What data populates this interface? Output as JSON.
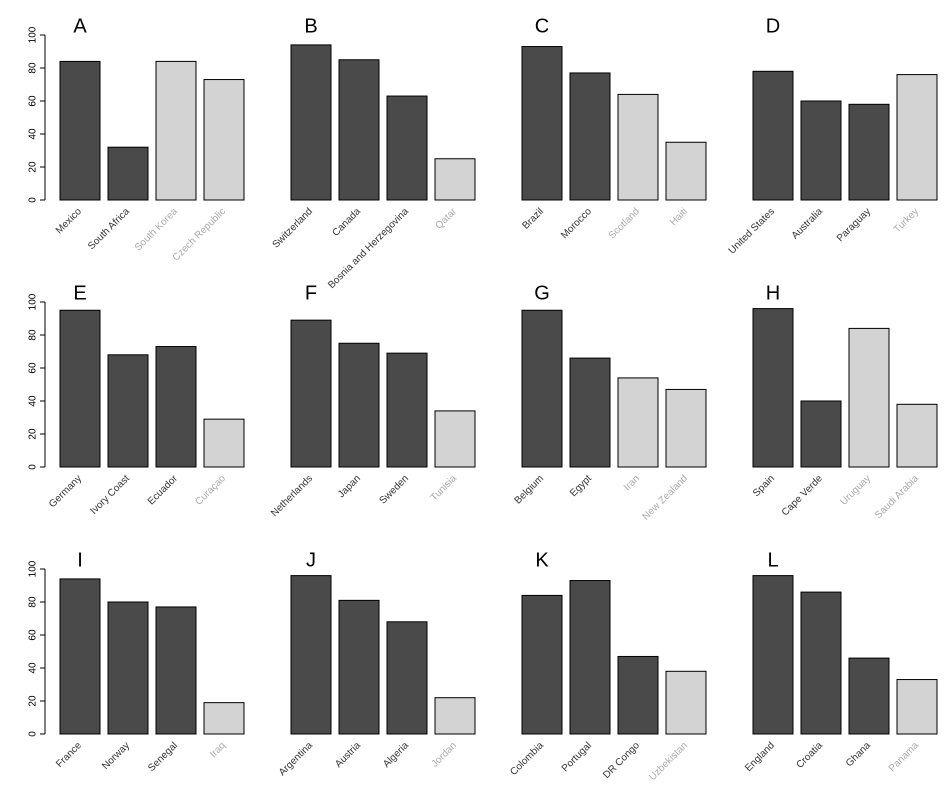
{
  "chart_data": [
    {
      "type": "bar",
      "title": "A",
      "categories": [
        "Mexico",
        "South Africa",
        "South Korea",
        "Czech Republic"
      ],
      "values": [
        84,
        32,
        84,
        73
      ],
      "colors": [
        "#4a4a4a",
        "#4a4a4a",
        "#d3d3d3",
        "#d3d3d3"
      ],
      "label_colors": [
        "#333333",
        "#333333",
        "#aaaaaa",
        "#aaaaaa"
      ],
      "ylim": [
        0,
        100
      ],
      "yticks": [
        0,
        20,
        40,
        60,
        80,
        100
      ]
    },
    {
      "type": "bar",
      "title": "B",
      "categories": [
        "Switzerland",
        "Canada",
        "Bosnia and Herzegovina",
        "Qatar"
      ],
      "values": [
        94,
        85,
        63,
        25
      ],
      "colors": [
        "#4a4a4a",
        "#4a4a4a",
        "#4a4a4a",
        "#d3d3d3"
      ],
      "label_colors": [
        "#333333",
        "#333333",
        "#333333",
        "#aaaaaa"
      ],
      "ylim": [
        0,
        100
      ]
    },
    {
      "type": "bar",
      "title": "C",
      "categories": [
        "Brazil",
        "Morocco",
        "Scotland",
        "Haiti"
      ],
      "values": [
        93,
        77,
        64,
        35
      ],
      "colors": [
        "#4a4a4a",
        "#4a4a4a",
        "#d3d3d3",
        "#d3d3d3"
      ],
      "label_colors": [
        "#333333",
        "#333333",
        "#aaaaaa",
        "#aaaaaa"
      ],
      "ylim": [
        0,
        100
      ]
    },
    {
      "type": "bar",
      "title": "D",
      "categories": [
        "United States",
        "Australia",
        "Paraguay",
        "Turkey"
      ],
      "values": [
        78,
        60,
        58,
        76
      ],
      "colors": [
        "#4a4a4a",
        "#4a4a4a",
        "#4a4a4a",
        "#d3d3d3"
      ],
      "label_colors": [
        "#333333",
        "#333333",
        "#333333",
        "#aaaaaa"
      ],
      "ylim": [
        0,
        100
      ]
    },
    {
      "type": "bar",
      "title": "E",
      "categories": [
        "Germany",
        "Ivory Coast",
        "Ecuador",
        "Curaçao"
      ],
      "values": [
        95,
        68,
        73,
        29
      ],
      "colors": [
        "#4a4a4a",
        "#4a4a4a",
        "#4a4a4a",
        "#d3d3d3"
      ],
      "label_colors": [
        "#333333",
        "#333333",
        "#333333",
        "#aaaaaa"
      ],
      "ylim": [
        0,
        100
      ],
      "yticks": [
        0,
        20,
        40,
        60,
        80,
        100
      ]
    },
    {
      "type": "bar",
      "title": "F",
      "categories": [
        "Netherlands",
        "Japan",
        "Sweden",
        "Tunisia"
      ],
      "values": [
        89,
        75,
        69,
        34
      ],
      "colors": [
        "#4a4a4a",
        "#4a4a4a",
        "#4a4a4a",
        "#d3d3d3"
      ],
      "label_colors": [
        "#333333",
        "#333333",
        "#333333",
        "#aaaaaa"
      ],
      "ylim": [
        0,
        100
      ]
    },
    {
      "type": "bar",
      "title": "G",
      "categories": [
        "Belgium",
        "Egypt",
        "Iran",
        "New Zealand"
      ],
      "values": [
        95,
        66,
        54,
        47
      ],
      "colors": [
        "#4a4a4a",
        "#4a4a4a",
        "#d3d3d3",
        "#d3d3d3"
      ],
      "label_colors": [
        "#333333",
        "#333333",
        "#aaaaaa",
        "#aaaaaa"
      ],
      "ylim": [
        0,
        100
      ]
    },
    {
      "type": "bar",
      "title": "H",
      "categories": [
        "Spain",
        "Cape Verde",
        "Uruguay",
        "Saudi Arabia"
      ],
      "values": [
        96,
        40,
        84,
        38
      ],
      "colors": [
        "#4a4a4a",
        "#4a4a4a",
        "#d3d3d3",
        "#d3d3d3"
      ],
      "label_colors": [
        "#333333",
        "#333333",
        "#aaaaaa",
        "#aaaaaa"
      ],
      "ylim": [
        0,
        100
      ]
    },
    {
      "type": "bar",
      "title": "I",
      "categories": [
        "France",
        "Norway",
        "Senegal",
        "Iraq"
      ],
      "values": [
        94,
        80,
        77,
        19
      ],
      "colors": [
        "#4a4a4a",
        "#4a4a4a",
        "#4a4a4a",
        "#d3d3d3"
      ],
      "label_colors": [
        "#333333",
        "#333333",
        "#333333",
        "#aaaaaa"
      ],
      "ylim": [
        0,
        100
      ],
      "yticks": [
        0,
        20,
        40,
        60,
        80,
        100
      ]
    },
    {
      "type": "bar",
      "title": "J",
      "categories": [
        "Argentina",
        "Austria",
        "Algeria",
        "Jordan"
      ],
      "values": [
        96,
        81,
        68,
        22
      ],
      "colors": [
        "#4a4a4a",
        "#4a4a4a",
        "#4a4a4a",
        "#d3d3d3"
      ],
      "label_colors": [
        "#333333",
        "#333333",
        "#333333",
        "#aaaaaa"
      ],
      "ylim": [
        0,
        100
      ]
    },
    {
      "type": "bar",
      "title": "K",
      "categories": [
        "Colombia",
        "Portugal",
        "DR Congo",
        "Uzbekistan"
      ],
      "values": [
        84,
        93,
        47,
        38
      ],
      "colors": [
        "#4a4a4a",
        "#4a4a4a",
        "#4a4a4a",
        "#d3d3d3"
      ],
      "label_colors": [
        "#333333",
        "#333333",
        "#333333",
        "#aaaaaa"
      ],
      "ylim": [
        0,
        100
      ]
    },
    {
      "type": "bar",
      "title": "L",
      "categories": [
        "England",
        "Croatia",
        "Ghana",
        "Panama"
      ],
      "values": [
        96,
        86,
        46,
        33
      ],
      "colors": [
        "#4a4a4a",
        "#4a4a4a",
        "#4a4a4a",
        "#d3d3d3"
      ],
      "label_colors": [
        "#333333",
        "#333333",
        "#333333",
        "#aaaaaa"
      ],
      "ylim": [
        0,
        100
      ]
    }
  ]
}
